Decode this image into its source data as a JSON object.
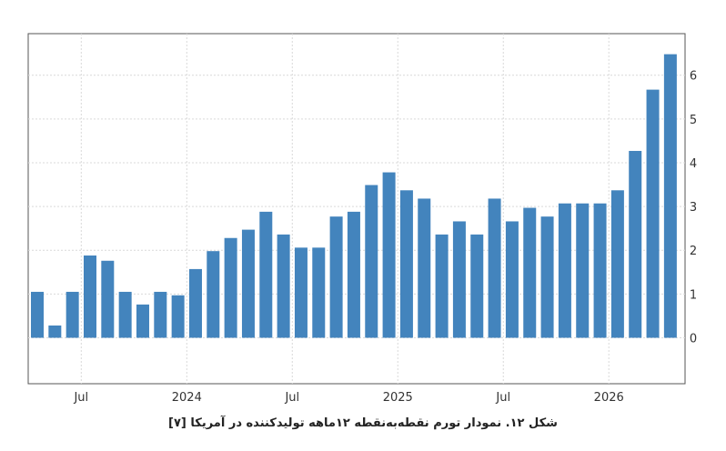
{
  "chart_data": {
    "type": "bar",
    "title": "",
    "xlabel": "",
    "ylabel": "",
    "x_tick_labels": [
      "Jul",
      "2024",
      "Jul",
      "2025",
      "Jul",
      "2026"
    ],
    "y_ticks": [
      0,
      1,
      2,
      3,
      4,
      5,
      6
    ],
    "ylim": [
      -1.05,
      6.95
    ],
    "grid": true,
    "color": "#4384bd",
    "values": [
      1.05,
      0.28,
      1.05,
      1.88,
      1.76,
      1.05,
      0.76,
      1.05,
      0.97,
      1.57,
      1.98,
      2.28,
      2.47,
      2.88,
      2.36,
      2.06,
      2.06,
      2.77,
      2.88,
      3.49,
      3.78,
      3.37,
      3.18,
      2.36,
      2.66,
      2.36,
      3.18,
      2.66,
      2.97,
      2.77,
      3.07,
      3.07,
      3.07,
      3.37,
      4.27,
      5.67,
      6.48
    ]
  },
  "caption": "شکل ۱۲. نمودار تورم نقطه‌به‌نقطه ۱۲ماهه تولیدکننده در آمریکا  [۷]"
}
